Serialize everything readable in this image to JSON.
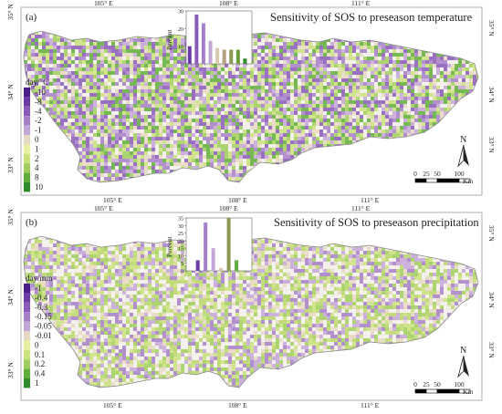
{
  "panels": [
    {
      "id": "a",
      "label": "(a)",
      "title": "Sensitivity of SOS to preseason temperature",
      "legend": {
        "unit": "day/°C",
        "items": [
          {
            "label": "-10",
            "color": "#4b1d8c"
          },
          {
            "label": "-8",
            "color": "#6a3aa6"
          },
          {
            "label": "-4",
            "color": "#8a5ab9"
          },
          {
            "label": "-2",
            "color": "#a67fc9"
          },
          {
            "label": "-1",
            "color": "#c3a6d8"
          },
          {
            "label": "0",
            "color": "#e6d9c3"
          },
          {
            "label": "1",
            "color": "#e8f0a0"
          },
          {
            "label": "2",
            "color": "#c9e27a"
          },
          {
            "label": "4",
            "color": "#9fcf5a"
          },
          {
            "label": "8",
            "color": "#5fae3a"
          },
          {
            "label": "10",
            "color": "#2e8b2a"
          }
        ]
      },
      "histogram": {
        "ylabel": "Percent",
        "yticks": [
          "0",
          "10",
          "20",
          "30"
        ],
        "ymax": 30,
        "values": [
          10,
          28,
          23,
          13,
          9,
          8,
          8,
          8,
          3
        ],
        "colors": [
          "#6a3aa6",
          "#8a5ab9",
          "#a67fc9",
          "#c3a6d8",
          "#d8c8b0",
          "#b7a080",
          "#8a9a55",
          "#6b9c3a",
          "#2e8b2a"
        ]
      },
      "map_colors": [
        "#8a5ab9",
        "#a67fc9",
        "#c3a6d8",
        "#c9e27a",
        "#9fcf5a",
        "#5fae3a",
        "#e6d9c3",
        "#ffffff"
      ]
    },
    {
      "id": "b",
      "label": "(b)",
      "title": "Sensitivity of SOS to preseason precipitation",
      "legend": {
        "unit": "day/mm",
        "items": [
          {
            "label": "-1",
            "color": "#4b1d8c"
          },
          {
            "label": "-0.4",
            "color": "#6a3aa6"
          },
          {
            "label": "-0.3",
            "color": "#8a5ab9"
          },
          {
            "label": "-0.15",
            "color": "#a67fc9"
          },
          {
            "label": "-0.05",
            "color": "#c3a6d8"
          },
          {
            "label": "-0.01",
            "color": "#e6d9c3"
          },
          {
            "label": "0",
            "color": "#e8f0a0"
          },
          {
            "label": "0.1",
            "color": "#c9e27a"
          },
          {
            "label": "0.2",
            "color": "#9fcf5a"
          },
          {
            "label": "0.4",
            "color": "#5fae3a"
          },
          {
            "label": "1",
            "color": "#2e8b2a"
          }
        ]
      },
      "histogram": {
        "ylabel": "Percent",
        "yticks": [
          "0",
          "5",
          "10",
          "15",
          "20",
          "25",
          "30",
          "35"
        ],
        "ymax": 35,
        "values": [
          0,
          7,
          32,
          15,
          2,
          35,
          7,
          0
        ],
        "colors": [
          "#6a3aa6",
          "#6a3aa6",
          "#a67fc9",
          "#c3a6d8",
          "#d8c8b0",
          "#8a9a55",
          "#5fae3a",
          "#2e8b2a"
        ]
      },
      "map_colors": [
        "#c9e27a",
        "#b8d86a",
        "#9fcf5a",
        "#a67fc9",
        "#c3a6d8",
        "#e6d9c3",
        "#ffffff",
        "#ffffff"
      ]
    }
  ],
  "axes": {
    "lon_ticks": [
      "105° E",
      "108° E",
      "111° E"
    ],
    "lat_ticks": [
      "35° N",
      "34° N",
      "33° N"
    ]
  },
  "scalebar": {
    "labels": [
      "0",
      "25",
      "50",
      "100"
    ],
    "unit": "Km"
  },
  "north": "N"
}
